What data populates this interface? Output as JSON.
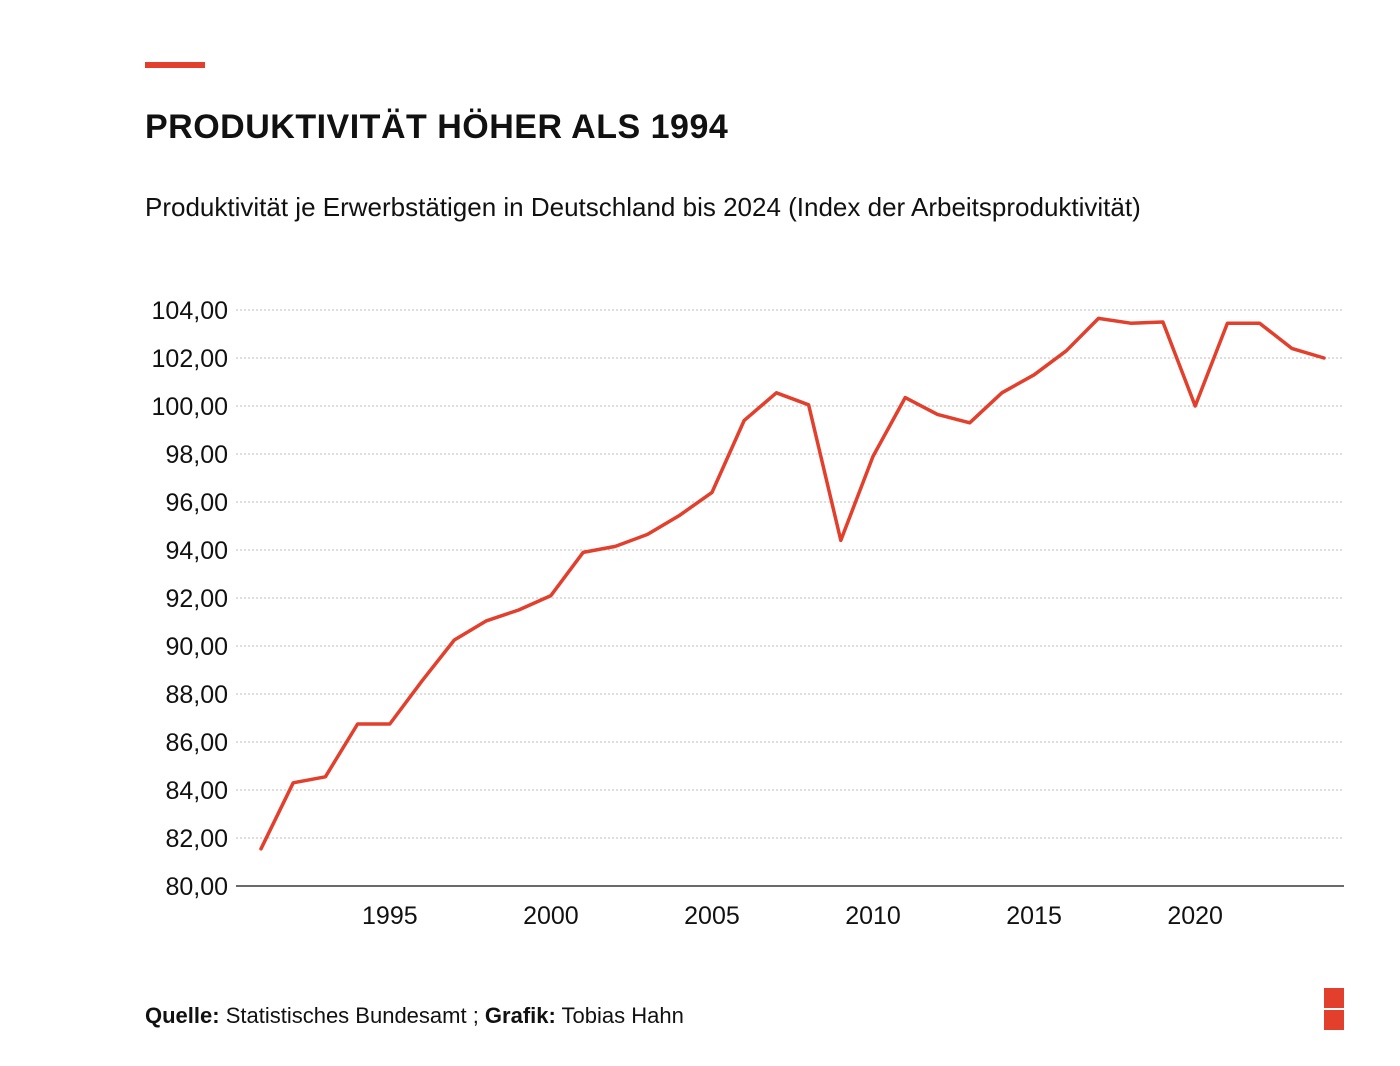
{
  "title": "PRODUKTIVITÄT HÖHER ALS 1994",
  "subtitle": "Produktivität je Erwerbstätigen in Deutschland bis 2024 (Index der Arbeitsproduktivität)",
  "footer": {
    "source_label": "Quelle:",
    "source_value": " Statistisches Bundesamt ; ",
    "graphic_label": "Grafik:",
    "graphic_value": " Tobias Hahn"
  },
  "colors": {
    "accent": "#e2402d",
    "grid": "#bdbdbd",
    "text": "#111111"
  },
  "chart_data": {
    "type": "line",
    "title": "",
    "xlabel": "",
    "ylabel": "",
    "ylim": [
      80,
      104
    ],
    "xlim": [
      1991,
      2024
    ],
    "grid": true,
    "y_ticks": [
      80,
      82,
      84,
      86,
      88,
      90,
      92,
      94,
      96,
      98,
      100,
      102,
      104
    ],
    "y_tick_labels": [
      "80,00",
      "82,00",
      "84,00",
      "86,00",
      "88,00",
      "90,00",
      "92,00",
      "94,00",
      "96,00",
      "98,00",
      "100,00",
      "102,00",
      "104,00"
    ],
    "x_ticks": [
      1995,
      2000,
      2005,
      2010,
      2015,
      2020
    ],
    "x_tick_labels": [
      "1995",
      "2000",
      "2005",
      "2010",
      "2015",
      "2020"
    ],
    "x": [
      1991,
      1992,
      1993,
      1994,
      1995,
      1996,
      1997,
      1998,
      1999,
      2000,
      2001,
      2002,
      2003,
      2004,
      2005,
      2006,
      2007,
      2008,
      2009,
      2010,
      2011,
      2012,
      2013,
      2014,
      2015,
      2016,
      2017,
      2018,
      2019,
      2020,
      2021,
      2022,
      2023,
      2024
    ],
    "series": [
      {
        "color": "#e2402d",
        "values": [
          81.55,
          84.3,
          84.55,
          86.75,
          86.75,
          88.55,
          90.25,
          91.05,
          91.5,
          92.1,
          93.9,
          94.15,
          94.65,
          95.45,
          96.4,
          99.4,
          100.55,
          100.05,
          94.4,
          97.9,
          100.35,
          99.65,
          99.3,
          100.55,
          101.3,
          102.3,
          103.65,
          103.45,
          103.5,
          100.0,
          103.45,
          103.45,
          102.4,
          102.0
        ]
      }
    ]
  }
}
